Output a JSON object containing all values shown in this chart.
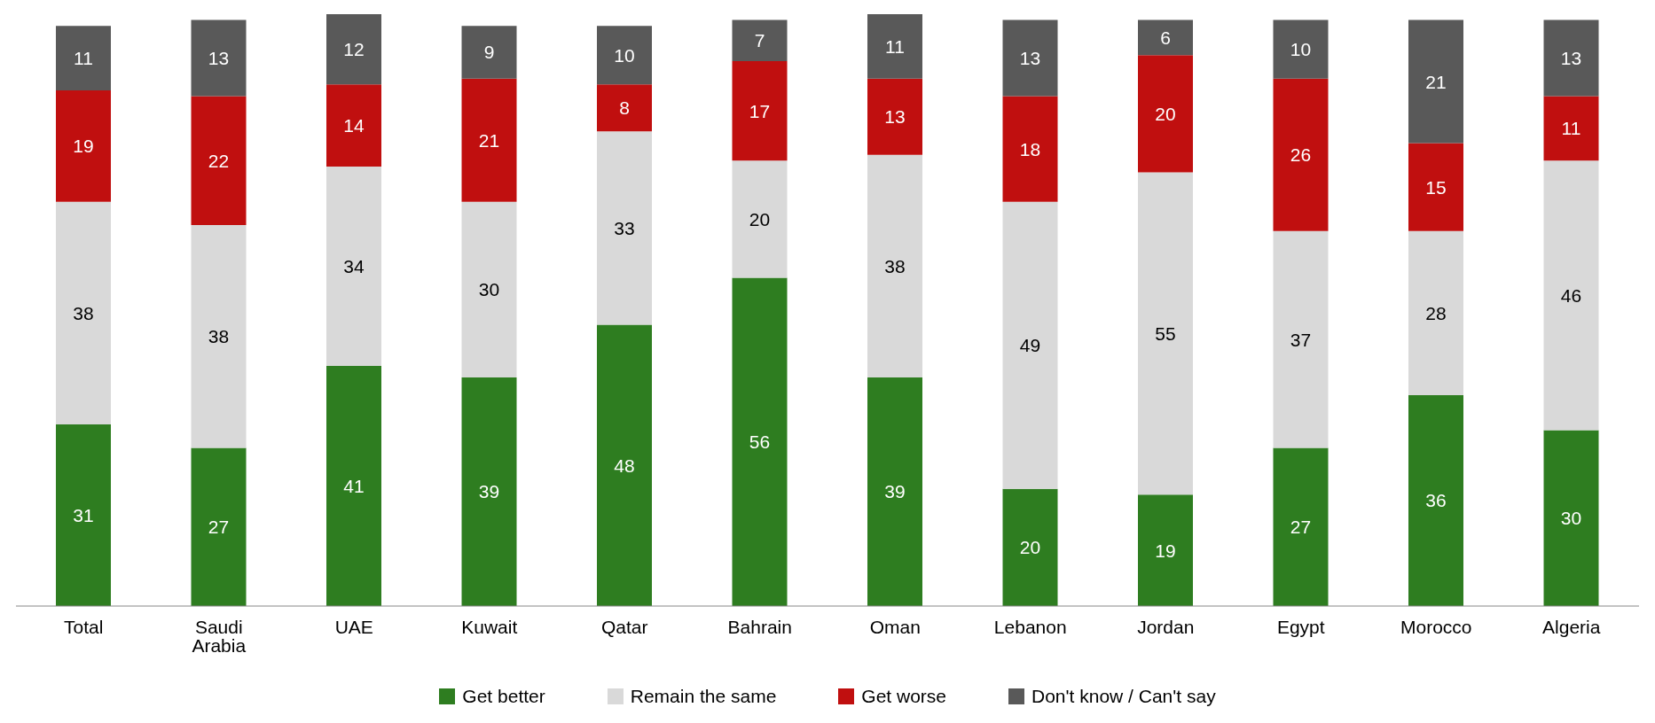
{
  "chart_data": {
    "type": "bar",
    "stacked": true,
    "data_labels": true,
    "legend": "bottom",
    "categories": [
      "Total",
      "Saudi Arabia",
      "UAE",
      "Kuwait",
      "Qatar",
      "Bahrain",
      "Oman",
      "Lebanon",
      "Jordan",
      "Egypt",
      "Morocco",
      "Algeria"
    ],
    "series": [
      {
        "name": "Get better",
        "color": "#2e7d20",
        "values": [
          31,
          27,
          41,
          39,
          48,
          56,
          39,
          20,
          19,
          27,
          36,
          30
        ]
      },
      {
        "name": "Remain the same",
        "color": "#d9d9d9",
        "values": [
          38,
          38,
          34,
          30,
          33,
          20,
          38,
          49,
          55,
          37,
          28,
          46
        ]
      },
      {
        "name": "Get worse",
        "color": "#c00f0f",
        "values": [
          19,
          22,
          14,
          21,
          8,
          17,
          13,
          18,
          20,
          26,
          15,
          11
        ]
      },
      {
        "name": "Don't know / Can't say",
        "color": "#595959",
        "values": [
          11,
          13,
          12,
          9,
          10,
          7,
          11,
          13,
          6,
          10,
          21,
          13
        ]
      }
    ]
  }
}
